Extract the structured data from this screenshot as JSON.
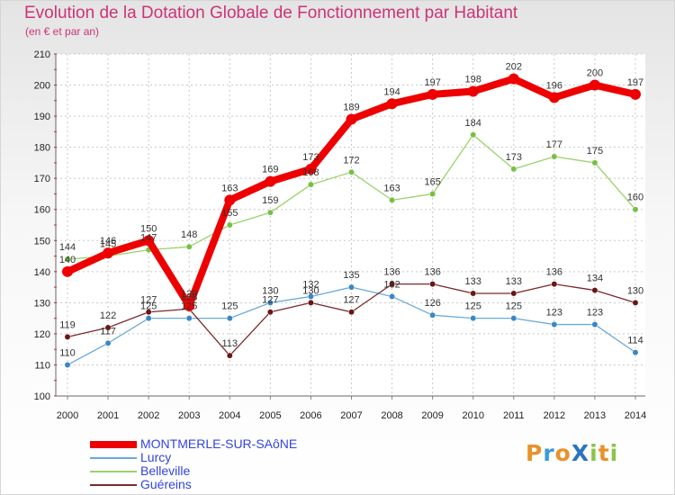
{
  "header": {
    "title": "Evolution de la Dotation Globale de Fonctionnement par Habitant",
    "subtitle": "(en € et par an)"
  },
  "logo": {
    "text": "ProXiti",
    "letters": [
      "P",
      "r",
      "o",
      "X",
      "i",
      "t",
      "i"
    ],
    "colors": [
      "#e8922a",
      "#3a9bd5",
      "#e8922a",
      "#2a74c0",
      "#8bc34a",
      "#e8922a",
      "#8bc34a"
    ]
  },
  "chart_data": {
    "type": "line",
    "title": "Evolution de la Dotation Globale de Fonctionnement par Habitant",
    "subtitle": "(en € et par an)",
    "xlabel": "",
    "ylabel": "",
    "x": [
      2000,
      2001,
      2002,
      2003,
      2004,
      2005,
      2006,
      2007,
      2008,
      2009,
      2010,
      2011,
      2012,
      2013,
      2014
    ],
    "ylim": [
      100,
      210
    ],
    "yticks": [
      100,
      110,
      120,
      130,
      140,
      150,
      160,
      170,
      180,
      190,
      200,
      210
    ],
    "grid": true,
    "legend_position": "bottom-left",
    "series": [
      {
        "name": "Lurcy",
        "color": "#6aaad8",
        "point_color": "#3b87c5",
        "weight": "thin",
        "values": [
          110,
          117,
          125,
          125,
          125,
          130,
          132,
          135,
          132,
          126,
          125,
          125,
          123,
          123,
          114
        ]
      },
      {
        "name": "Belleville",
        "color": "#99d26a",
        "point_color": "#76c043",
        "weight": "thin",
        "values": [
          144,
          145,
          147,
          148,
          155,
          159,
          168,
          172,
          163,
          165,
          184,
          173,
          177,
          175,
          160
        ]
      },
      {
        "name": "Guéreins",
        "color": "#7a2a2a",
        "point_color": "#6a1616",
        "weight": "thin",
        "values": [
          119,
          122,
          127,
          128,
          113,
          127,
          130,
          127,
          136,
          136,
          133,
          133,
          136,
          134,
          130
        ]
      },
      {
        "name": "MONTMERLE-SUR-SAôNE",
        "color": "#ee0000",
        "point_color": "#ee0000",
        "weight": "thick",
        "values": [
          140,
          146,
          150,
          129,
          163,
          169,
          173,
          189,
          194,
          197,
          198,
          202,
          196,
          200,
          197
        ]
      }
    ],
    "legend_order": [
      "MONTMERLE-SUR-SAôNE",
      "Lurcy",
      "Belleville",
      "Guéreins"
    ]
  }
}
